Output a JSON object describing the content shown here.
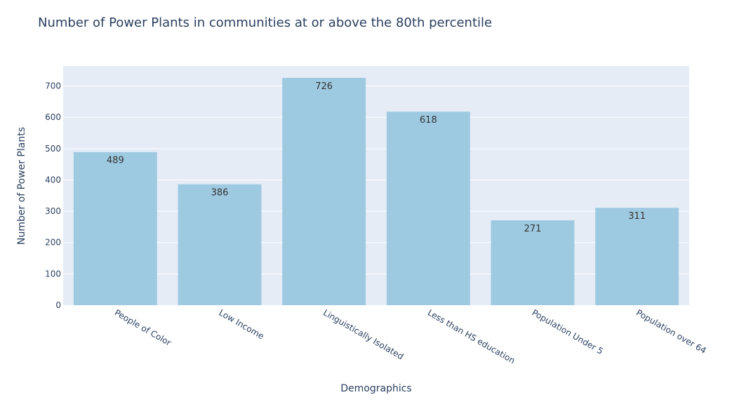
{
  "chart_data": {
    "type": "bar",
    "title": "Number of Power Plants in communities at or above the 80th percentile",
    "xlabel": "Demographics",
    "ylabel": "Number of Power Plants",
    "categories": [
      "People of Color",
      "Low Income",
      "Linguistically Isolated",
      "Less than HS education",
      "Population Under 5",
      "Population over 64"
    ],
    "values": [
      489,
      386,
      726,
      618,
      271,
      311
    ],
    "ylim": [
      0,
      764
    ],
    "yticks": [
      0,
      100,
      200,
      300,
      400,
      500,
      600,
      700
    ],
    "grid": true,
    "legend": "none",
    "colors": {
      "bar": "#9ecae1",
      "plot_background": "#e5ecf6",
      "text": "#2a3f5f",
      "data_label": "#333333",
      "grid": "#ffffff"
    }
  }
}
